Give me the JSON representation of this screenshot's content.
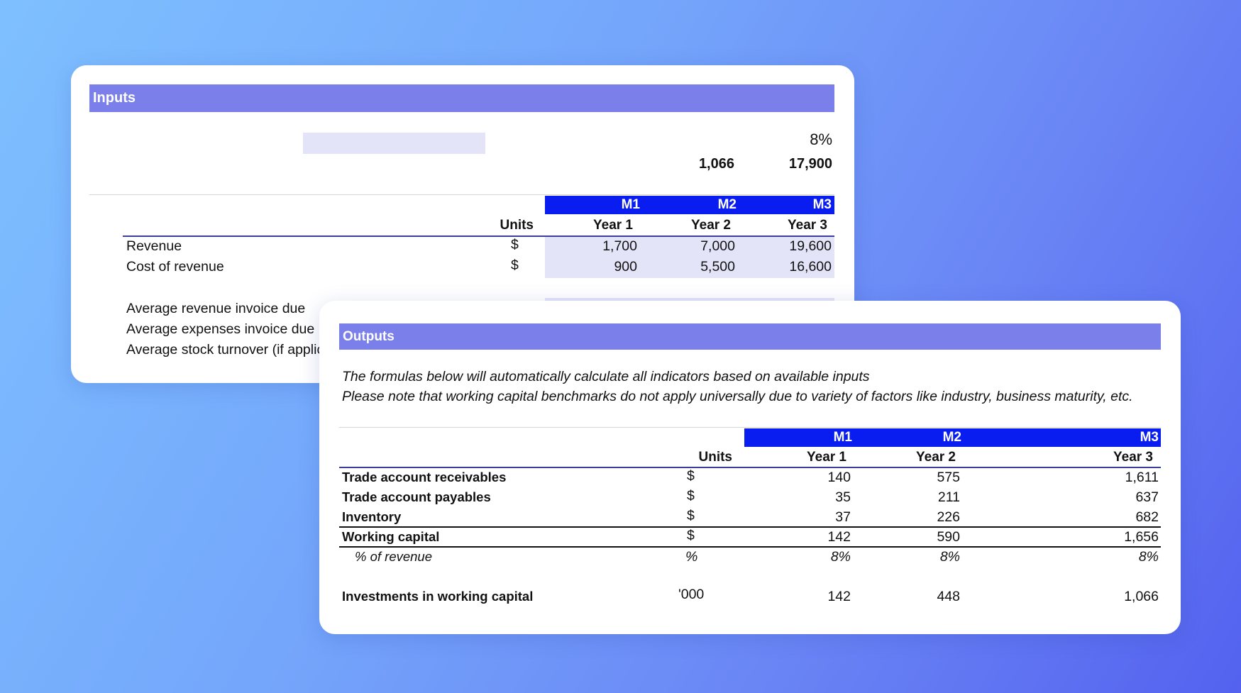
{
  "inputs": {
    "title": "Inputs",
    "summary_pct": "8%",
    "summary_left": "1,066",
    "summary_right": "17,900",
    "units_header": "Units",
    "periods": [
      {
        "m": "M1",
        "year": "Year  1"
      },
      {
        "m": "M2",
        "year": "Year  2"
      },
      {
        "m": "M3",
        "year": "Year  3"
      }
    ],
    "rows": [
      {
        "label": "Revenue",
        "unit": "$",
        "values": [
          "1,700",
          "7,000",
          "19,600"
        ]
      },
      {
        "label": "Cost of revenue",
        "unit": "$",
        "values": [
          "900",
          "5,500",
          "16,600"
        ]
      }
    ],
    "extra_rows": [
      "Average revenue invoice due",
      "Average expenses invoice due",
      "Average stock turnover (if applicable)"
    ]
  },
  "outputs": {
    "title": "Outputs",
    "note_line1": "The formulas below will automatically calculate all indicators based on available inputs",
    "note_line2": "Please note that working capital benchmarks do not apply universally due to variety of factors like industry, business maturity, etc.",
    "units_header": "Units",
    "periods": [
      {
        "m": "M1",
        "year": "Year  1"
      },
      {
        "m": "M2",
        "year": "Year  2"
      },
      {
        "m": "M3",
        "year": "Year  3"
      }
    ],
    "rows": [
      {
        "label": "Trade account receivables",
        "unit": "$",
        "values": [
          "140",
          "575",
          "1,611"
        ]
      },
      {
        "label": "Trade account payables",
        "unit": "$",
        "values": [
          "35",
          "211",
          "637"
        ]
      },
      {
        "label": "Inventory",
        "unit": "$",
        "values": [
          "37",
          "226",
          "682"
        ]
      },
      {
        "label": "Working capital",
        "unit": "$",
        "values": [
          "142",
          "590",
          "1,656"
        ]
      },
      {
        "label": "% of revenue",
        "unit": "%",
        "values": [
          "8%",
          "8%",
          "8%"
        ]
      },
      {
        "label": "Investments in working capital",
        "unit": "'000",
        "values": [
          "142",
          "448",
          "1,066"
        ]
      }
    ]
  },
  "colors": {
    "header_bar": "#7b7fe9",
    "period_header": "#0a1df0",
    "input_cell": "#e3e4f8"
  }
}
